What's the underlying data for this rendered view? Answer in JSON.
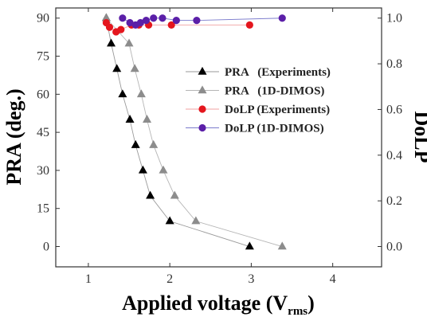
{
  "chart_data": {
    "type": "scatter",
    "xlabel": "Applied voltage (V",
    "xlabel_sub": "rms",
    "xlabel_close": ")",
    "ylabel_left": "PRA (deg.)",
    "ylabel_right": "DoLP",
    "xlim": [
      0.6,
      4.6
    ],
    "ylim_left": [
      -8,
      94
    ],
    "ylim_right": [
      -0.08889,
      1.04444
    ],
    "x_ticks": [
      "1",
      "2",
      "3",
      "4"
    ],
    "y_left_ticks": [
      "0",
      "15",
      "30",
      "45",
      "60",
      "75",
      "90"
    ],
    "y_right_ticks": [
      "0.0",
      "0.2",
      "0.4",
      "0.6",
      "0.8",
      "1.0"
    ],
    "legend_position": "upper right, inside plot",
    "series": [
      {
        "name": "PRA   (Experiments)",
        "axis": "left",
        "marker": "triangle",
        "color": "#000000",
        "line_color": "#9a9a9a",
        "x": [
          1.22,
          1.28,
          1.35,
          1.42,
          1.51,
          1.58,
          1.67,
          1.76,
          2.0,
          2.98
        ],
        "y": [
          90,
          80,
          70,
          60,
          50,
          40,
          30,
          20,
          10,
          0
        ]
      },
      {
        "name": "PRA   (1D-DIMOS)",
        "axis": "left",
        "marker": "triangle",
        "color": "#8c8c8c",
        "line_color": "#b5b5b5",
        "x": [
          1.22,
          1.5,
          1.57,
          1.65,
          1.72,
          1.8,
          1.92,
          2.06,
          2.32,
          3.38
        ],
        "y": [
          90,
          80,
          70,
          60,
          50,
          40,
          30,
          20,
          10,
          0
        ]
      },
      {
        "name": "DoLP (Experiments)",
        "axis": "right",
        "marker": "circle",
        "color": "#e4161d",
        "line_color": "#f0a0a0",
        "x": [
          1.22,
          1.26,
          1.34,
          1.4,
          1.53,
          1.62,
          1.74,
          2.02,
          2.98
        ],
        "y": [
          0.98,
          0.96,
          0.94,
          0.95,
          0.97,
          0.97,
          0.97,
          0.97,
          0.97
        ]
      },
      {
        "name": "DoLP (1D-DIMOS)",
        "axis": "right",
        "marker": "circle",
        "color": "#5b1fa8",
        "line_color": "#7a7acc",
        "x": [
          1.42,
          1.51,
          1.58,
          1.64,
          1.71,
          1.8,
          1.91,
          2.08,
          2.33,
          3.38
        ],
        "y": [
          1.0,
          0.98,
          0.97,
          0.98,
          0.99,
          1.0,
          1.0,
          0.99,
          0.99,
          1.0
        ]
      }
    ]
  }
}
